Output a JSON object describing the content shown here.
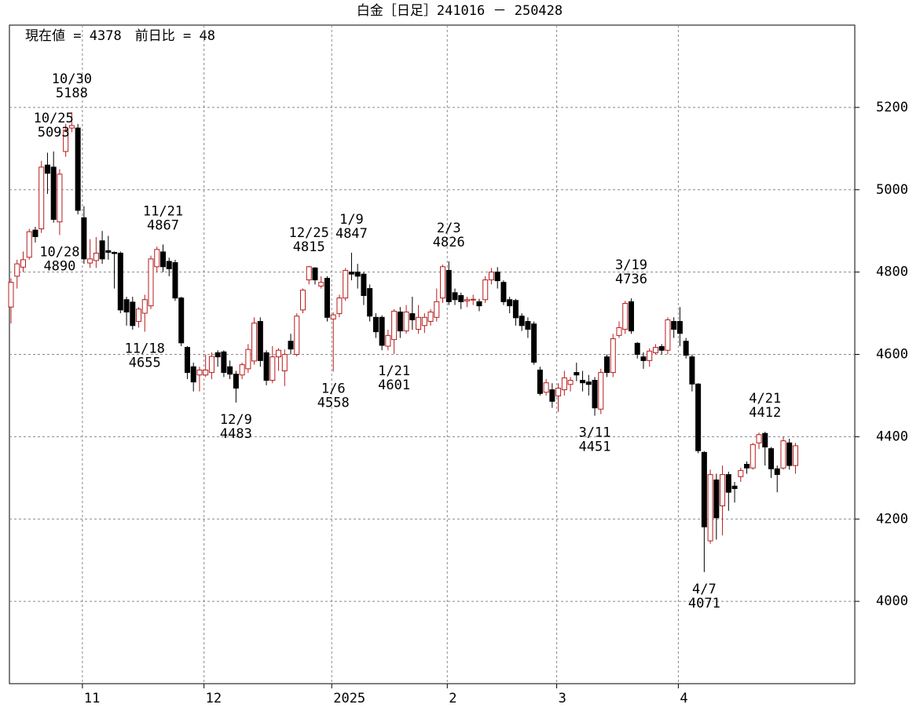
{
  "chart_data": {
    "type": "candlestick",
    "title": "白金［日足］241016 － 250428",
    "info": {
      "separator": "=",
      "current": {
        "label": "現在値",
        "value": 4378
      },
      "change": {
        "label": "前日比",
        "value": 48
      }
    },
    "categories": [
      null,
      null,
      null,
      null,
      null,
      null,
      null,
      null,
      null,
      null,
      null,
      null,
      "11",
      null,
      null,
      null,
      null,
      null,
      null,
      null,
      null,
      null,
      null,
      null,
      null,
      null,
      null,
      null,
      null,
      null,
      null,
      null,
      "12",
      null,
      null,
      null,
      null,
      null,
      null,
      null,
      null,
      null,
      null,
      null,
      null,
      null,
      null,
      null,
      null,
      null,
      null,
      null,
      null,
      "2025",
      null,
      null,
      null,
      null,
      null,
      null,
      null,
      null,
      null,
      null,
      null,
      null,
      null,
      null,
      null,
      null,
      null,
      null,
      "2",
      null,
      null,
      null,
      null,
      null,
      null,
      null,
      null,
      null,
      null,
      null,
      null,
      null,
      null,
      null,
      null,
      null,
      "3",
      null,
      null,
      null,
      null,
      null,
      null,
      null,
      null,
      null,
      null,
      null,
      null,
      null,
      null,
      null,
      null,
      null,
      null,
      null,
      "4",
      null,
      null,
      null,
      null,
      null,
      null,
      null,
      null,
      null,
      null,
      null,
      null,
      null,
      null,
      null,
      null,
      null,
      null,
      null
    ],
    "open": [
      4715,
      4790,
      4812,
      4836,
      4902,
      4905,
      5060,
      5055,
      4922,
      5093,
      5150,
      5150,
      4932,
      4822,
      4828,
      4876,
      4852,
      4848,
      4846,
      4733,
      4727,
      4680,
      4700,
      4718,
      4813,
      4849,
      4826,
      4823,
      4737,
      4617,
      4570,
      4550,
      4550,
      4556,
      4604,
      4606,
      4570,
      4552,
      4550,
      4565,
      4584,
      4680,
      4604,
      4537,
      4594,
      4560,
      4632,
      4600,
      4708,
      4781,
      4810,
      4766,
      4785,
      4686,
      4699,
      4737,
      4800,
      4800,
      4795,
      4760,
      4690,
      4690,
      4620,
      4636,
      4703,
      4657,
      4699,
      4661,
      4670,
      4680,
      4690,
      4737,
      4804,
      4750,
      4743,
      4730,
      4732,
      4728,
      4733,
      4781,
      4800,
      4775,
      4733,
      4731,
      4693,
      4680,
      4674,
      4562,
      4508,
      4514,
      4499,
      4514,
      4527,
      4556,
      4537,
      4533,
      4537,
      4467,
      4594,
      4556,
      4646,
      4661,
      4728,
      4627,
      4594,
      4585,
      4604,
      4619,
      4610,
      4680,
      4680,
      4632,
      4594,
      4528,
      4362,
      4147,
      4295,
      4232,
      4308,
      4280,
      4303,
      4333,
      4324,
      4385,
      4408,
      4371,
      4322,
      4324,
      4385,
      4330
    ],
    "high": [
      4785,
      4830,
      4850,
      4905,
      4910,
      5070,
      5090,
      5093,
      5050,
      5160,
      5188,
      5160,
      4960,
      4880,
      4885,
      4900,
      4888,
      4850,
      4850,
      4740,
      4740,
      4715,
      4745,
      4840,
      4862,
      4867,
      4835,
      4830,
      4740,
      4620,
      4580,
      4570,
      4600,
      4605,
      4610,
      4610,
      4585,
      4560,
      4580,
      4625,
      4690,
      4690,
      4610,
      4620,
      4615,
      4612,
      4650,
      4700,
      4760,
      4815,
      4812,
      4790,
      4790,
      4702,
      4745,
      4810,
      4847,
      4820,
      4800,
      4770,
      4700,
      4695,
      4660,
      4710,
      4715,
      4720,
      4740,
      4720,
      4700,
      4710,
      4760,
      4818,
      4826,
      4760,
      4750,
      4740,
      4745,
      4735,
      4790,
      4810,
      4812,
      4780,
      4740,
      4735,
      4700,
      4690,
      4680,
      4570,
      4540,
      4530,
      4530,
      4560,
      4545,
      4580,
      4560,
      4550,
      4545,
      4565,
      4600,
      4650,
      4680,
      4730,
      4736,
      4630,
      4605,
      4615,
      4625,
      4625,
      4690,
      4690,
      4715,
      4640,
      4600,
      4530,
      4365,
      4320,
      4310,
      4330,
      4315,
      4290,
      4325,
      4340,
      4385,
      4410,
      4412,
      4375,
      4330,
      4400,
      4395,
      4385
    ],
    "low": [
      4675,
      4760,
      4800,
      4830,
      4872,
      4895,
      4990,
      4920,
      4890,
      5080,
      5140,
      4940,
      4820,
      4810,
      4810,
      4820,
      4830,
      4760,
      4700,
      4670,
      4660,
      4665,
      4655,
      4710,
      4800,
      4800,
      4790,
      4730,
      4620,
      4540,
      4510,
      4510,
      4545,
      4540,
      4570,
      4545,
      4540,
      4483,
      4540,
      4555,
      4575,
      4570,
      4525,
      4530,
      4560,
      4523,
      4600,
      4595,
      4700,
      4770,
      4770,
      4760,
      4680,
      4558,
      4690,
      4730,
      4780,
      4760,
      4720,
      4680,
      4640,
      4610,
      4610,
      4601,
      4640,
      4650,
      4660,
      4650,
      4652,
      4670,
      4680,
      4725,
      4720,
      4720,
      4710,
      4715,
      4720,
      4705,
      4725,
      4770,
      4760,
      4720,
      4700,
      4670,
      4657,
      4640,
      4575,
      4500,
      4500,
      4470,
      4460,
      4500,
      4510,
      4535,
      4510,
      4500,
      4451,
      4455,
      4545,
      4545,
      4640,
      4650,
      4650,
      4590,
      4565,
      4570,
      4600,
      4600,
      4600,
      4640,
      4620,
      4590,
      4510,
      4360,
      4071,
      4140,
      4150,
      4160,
      4220,
      4240,
      4290,
      4310,
      4320,
      4370,
      4330,
      4300,
      4265,
      4320,
      4320,
      4310
    ],
    "close": [
      4775,
      4820,
      4830,
      4898,
      4886,
      5055,
      5040,
      4928,
      5038,
      5145,
      5156,
      4950,
      4832,
      4832,
      4846,
      4832,
      4848,
      4845,
      4708,
      4703,
      4670,
      4710,
      4733,
      4832,
      4855,
      4813,
      4808,
      4737,
      4628,
      4556,
      4533,
      4562,
      4562,
      4595,
      4594,
      4556,
      4552,
      4518,
      4575,
      4612,
      4676,
      4585,
      4537,
      4594,
      4610,
      4600,
      4613,
      4693,
      4756,
      4813,
      4781,
      4775,
      4690,
      4696,
      4737,
      4804,
      4795,
      4790,
      4743,
      4693,
      4655,
      4622,
      4646,
      4705,
      4657,
      4703,
      4684,
      4690,
      4690,
      4703,
      4728,
      4813,
      4728,
      4733,
      4728,
      4733,
      4734,
      4718,
      4781,
      4800,
      4779,
      4728,
      4718,
      4689,
      4670,
      4661,
      4581,
      4505,
      4531,
      4486,
      4518,
      4543,
      4537,
      4550,
      4531,
      4527,
      4470,
      4556,
      4556,
      4638,
      4665,
      4724,
      4657,
      4600,
      4585,
      4608,
      4617,
      4610,
      4684,
      4661,
      4651,
      4598,
      4528,
      4366,
      4181,
      4308,
      4203,
      4308,
      4265,
      4274,
      4318,
      4324,
      4381,
      4405,
      4375,
      4322,
      4308,
      4390,
      4330,
      4378
    ],
    "up_color": "#b81c1c",
    "down_color": "#000000",
    "ylim": [
      3800,
      5400
    ],
    "yticks": [
      4000,
      4200,
      4400,
      4600,
      4800,
      5000,
      5200
    ],
    "grid": true,
    "annotations": [
      {
        "date": "10/25",
        "value": 5093
      },
      {
        "date": "10/30",
        "value": 5188
      },
      {
        "date": "10/28",
        "value": 4890
      },
      {
        "date": "11/21",
        "value": 4867
      },
      {
        "date": "11/18",
        "value": 4655
      },
      {
        "date": "12/9",
        "value": 4483
      },
      {
        "date": "12/25",
        "value": 4815
      },
      {
        "date": "1/9",
        "value": 4847
      },
      {
        "date": "1/6",
        "value": 4558
      },
      {
        "date": "1/21",
        "value": 4601
      },
      {
        "date": "2/3",
        "value": 4826
      },
      {
        "date": "3/11",
        "value": 4451
      },
      {
        "date": "3/19",
        "value": 4736
      },
      {
        "date": "4/7",
        "value": 4071
      },
      {
        "date": "4/21",
        "value": 4412
      }
    ]
  }
}
